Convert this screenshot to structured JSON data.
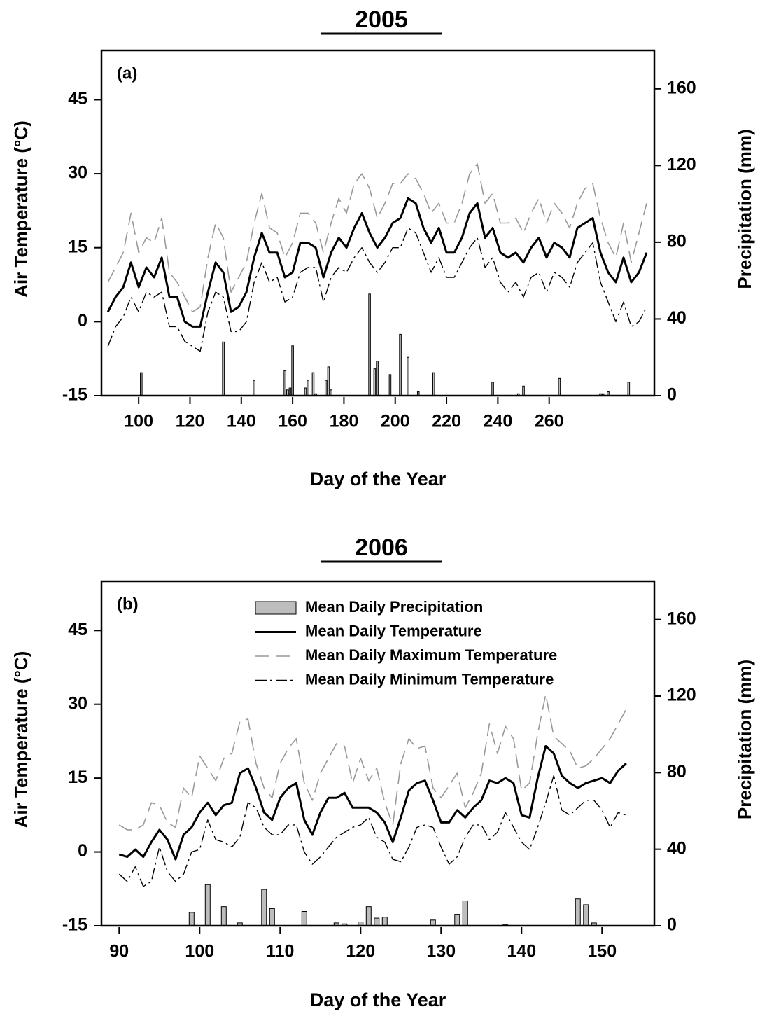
{
  "chart_data": [
    {
      "type": "line",
      "title": "2005",
      "panel_label": "(a)",
      "xlabel": "Day of the Year",
      "ylabel": "Air Temperature (°C)",
      "y2label": "Precipitation (mm)",
      "xlim": [
        85.5,
        301
      ],
      "xticks": [
        100,
        120,
        140,
        160,
        180,
        200,
        220,
        240,
        260
      ],
      "ylim": [
        -15,
        55
      ],
      "yticks": [
        -15,
        0,
        15,
        30,
        45
      ],
      "y2lim": [
        0,
        180
      ],
      "y2ticks": [
        0,
        40,
        80,
        120,
        160
      ],
      "legend": false,
      "series": [
        {
          "type": "bar",
          "axis": "y2",
          "color": "#bdbdbd",
          "x": [
            101,
            133,
            145,
            157,
            158,
            159,
            160,
            165,
            166,
            168,
            169,
            173,
            174,
            175,
            190,
            192,
            193,
            198,
            202,
            205,
            209,
            215,
            238,
            248,
            250,
            264,
            280,
            281,
            283,
            291
          ],
          "values": [
            12,
            28,
            8,
            13,
            3,
            4,
            26,
            4,
            8,
            12,
            1,
            8,
            15,
            3,
            53,
            14,
            18,
            11,
            32,
            20,
            2,
            12,
            7,
            1,
            5,
            9,
            1,
            1,
            2,
            7
          ]
        },
        {
          "style": "dashed",
          "color": "#999999",
          "x": [
            88,
            91,
            94,
            97,
            100,
            103,
            106,
            109,
            112,
            115,
            118,
            121,
            124,
            127,
            130,
            133,
            136,
            139,
            142,
            145,
            148,
            151,
            154,
            157,
            160,
            163,
            166,
            169,
            172,
            175,
            178,
            181,
            184,
            187,
            190,
            193,
            196,
            199,
            202,
            205,
            208,
            211,
            214,
            217,
            220,
            223,
            226,
            229,
            232,
            235,
            238,
            241,
            244,
            247,
            250,
            253,
            256,
            259,
            262,
            265,
            268,
            271,
            274,
            277,
            280,
            283,
            286,
            289,
            292,
            295,
            298
          ],
          "values": [
            8,
            11,
            14,
            22,
            14,
            17,
            16,
            21,
            10,
            8,
            5,
            2,
            3,
            13,
            20,
            17,
            6,
            9,
            12,
            20,
            26,
            19,
            18,
            13,
            16,
            22,
            22,
            20,
            14,
            20,
            25,
            22,
            28,
            30,
            27,
            21,
            24,
            28,
            28,
            30,
            29,
            26,
            22,
            24,
            20,
            20,
            24,
            30,
            32,
            24,
            26,
            20,
            20,
            21,
            18,
            22,
            25,
            20,
            24,
            22,
            19,
            24,
            27,
            28,
            21,
            16,
            13,
            20,
            12,
            18,
            24
          ]
        },
        {
          "style": "solid",
          "color": "#000000",
          "x": [
            88,
            91,
            94,
            97,
            100,
            103,
            106,
            109,
            112,
            115,
            118,
            121,
            124,
            127,
            130,
            133,
            136,
            139,
            142,
            145,
            148,
            151,
            154,
            157,
            160,
            163,
            166,
            169,
            172,
            175,
            178,
            181,
            184,
            187,
            190,
            193,
            196,
            199,
            202,
            205,
            208,
            211,
            214,
            217,
            220,
            223,
            226,
            229,
            232,
            235,
            238,
            241,
            244,
            247,
            250,
            253,
            256,
            259,
            262,
            265,
            268,
            271,
            274,
            277,
            280,
            283,
            286,
            289,
            292,
            295,
            298
          ],
          "values": [
            2,
            5,
            7,
            12,
            7,
            11,
            9,
            13,
            5,
            5,
            0,
            -1,
            -1,
            6,
            12,
            10,
            2,
            3,
            6,
            13,
            18,
            14,
            14,
            9,
            10,
            16,
            16,
            15,
            9,
            14,
            17,
            15,
            19,
            22,
            18,
            15,
            17,
            20,
            21,
            25,
            24,
            19,
            16,
            19,
            14,
            14,
            17,
            22,
            24,
            17,
            19,
            14,
            13,
            14,
            12,
            15,
            17,
            13,
            16,
            15,
            13,
            19,
            20,
            21,
            14,
            10,
            8,
            13,
            8,
            10,
            14
          ]
        },
        {
          "style": "dash-dot",
          "color": "#000000",
          "x": [
            88,
            91,
            94,
            97,
            100,
            103,
            106,
            109,
            112,
            115,
            118,
            121,
            124,
            127,
            130,
            133,
            136,
            139,
            142,
            145,
            148,
            151,
            154,
            157,
            160,
            163,
            166,
            169,
            172,
            175,
            178,
            181,
            184,
            187,
            190,
            193,
            196,
            199,
            202,
            205,
            208,
            211,
            214,
            217,
            220,
            223,
            226,
            229,
            232,
            235,
            238,
            241,
            244,
            247,
            250,
            253,
            256,
            259,
            262,
            265,
            268,
            271,
            274,
            277,
            280,
            283,
            286,
            289,
            292,
            295,
            298
          ],
          "values": [
            -5,
            -1,
            1,
            5,
            2,
            6,
            5,
            6,
            -1,
            -1,
            -4,
            -5,
            -6,
            2,
            6,
            5,
            -2,
            -2,
            0,
            8,
            12,
            8,
            9,
            4,
            5,
            10,
            11,
            11,
            4,
            9,
            11,
            10,
            13,
            15,
            12,
            10,
            12,
            15,
            15,
            19,
            18,
            14,
            10,
            13,
            9,
            9,
            12,
            15,
            17,
            11,
            13,
            8,
            6,
            8,
            5,
            9,
            10,
            6,
            10,
            9,
            7,
            12,
            14,
            16,
            8,
            4,
            0,
            4,
            -1,
            0,
            3
          ]
        }
      ]
    },
    {
      "type": "line",
      "title": "2006",
      "panel_label": "(b)",
      "xlabel": "Day of the Year",
      "ylabel": "Air Temperature (°C)",
      "y2label": "Precipitation (mm)",
      "xlim": [
        87.8,
        156.5
      ],
      "xticks": [
        90,
        100,
        110,
        120,
        130,
        140,
        150
      ],
      "ylim": [
        -15,
        55
      ],
      "yticks": [
        -15,
        0,
        15,
        30,
        45
      ],
      "y2lim": [
        0,
        180
      ],
      "y2ticks": [
        0,
        40,
        80,
        120,
        160
      ],
      "legend": true,
      "series": [
        {
          "name": "Mean Daily Precipitation",
          "type": "bar",
          "axis": "y2",
          "color": "#bdbdbd",
          "x": [
            99,
            101,
            103,
            105,
            108,
            109,
            113,
            117,
            118,
            120,
            121,
            122,
            123,
            129,
            132,
            133,
            138,
            147,
            148,
            149
          ],
          "values": [
            7,
            21.5,
            10,
            1.5,
            19,
            9,
            7.5,
            1.5,
            1,
            2,
            10,
            4,
            4.5,
            3,
            6,
            13,
            0.5,
            14,
            11,
            1.5
          ]
        },
        {
          "name": "Mean Daily Temperature",
          "style": "solid",
          "color": "#000000",
          "x": [
            90,
            91,
            92,
            93,
            94,
            95,
            96,
            97,
            98,
            99,
            100,
            101,
            102,
            103,
            104,
            105,
            106,
            107,
            108,
            109,
            110,
            111,
            112,
            113,
            114,
            115,
            116,
            117,
            118,
            119,
            120,
            121,
            122,
            123,
            124,
            125,
            126,
            127,
            128,
            129,
            130,
            131,
            132,
            133,
            134,
            135,
            136,
            137,
            138,
            139,
            140,
            141,
            142,
            143,
            144,
            145,
            146,
            147,
            148,
            149,
            150,
            151,
            152,
            153
          ],
          "values": [
            -0.5,
            -1,
            0.5,
            -1,
            2,
            4.5,
            2.5,
            -1.5,
            3.5,
            5,
            8,
            10,
            7.5,
            9.5,
            10,
            16,
            17,
            13,
            8,
            6.5,
            11,
            13,
            14,
            6.5,
            3.5,
            8,
            11,
            11,
            12,
            9,
            9,
            9,
            8,
            6,
            2,
            7,
            12.5,
            14,
            14.5,
            10.5,
            6,
            6,
            8.5,
            7,
            9,
            10.5,
            14.5,
            14,
            15,
            14,
            7.5,
            7,
            15,
            21.5,
            20,
            15.5,
            14,
            13,
            14,
            14.5,
            15,
            14,
            16.5,
            18
          ]
        },
        {
          "name": "Mean Daily Maximum Temperature",
          "style": "dashed",
          "color": "#999999",
          "x": [
            90,
            91,
            92,
            93,
            94,
            95,
            96,
            97,
            98,
            99,
            100,
            101,
            102,
            103,
            104,
            105,
            106,
            107,
            108,
            109,
            110,
            111,
            112,
            113,
            114,
            115,
            116,
            117,
            118,
            119,
            120,
            121,
            122,
            123,
            124,
            125,
            126,
            127,
            128,
            129,
            130,
            131,
            132,
            133,
            134,
            135,
            136,
            137,
            138,
            139,
            140,
            141,
            142,
            143,
            144,
            145,
            146,
            147,
            148,
            149,
            150,
            151,
            152,
            153
          ],
          "values": [
            5.5,
            4.5,
            4.5,
            5.5,
            10,
            9.5,
            6,
            5,
            13,
            11,
            19.5,
            17,
            14.5,
            19,
            20,
            26.5,
            27,
            18,
            13,
            11,
            18,
            21,
            23,
            14,
            10.5,
            16,
            19,
            22,
            21.5,
            14,
            19,
            14.5,
            17,
            10,
            5.5,
            18,
            23,
            21,
            21.5,
            13,
            11,
            13.5,
            16,
            9,
            12,
            16,
            26,
            20,
            25.5,
            23,
            12.5,
            14,
            24,
            32,
            23.5,
            22,
            20.5,
            17,
            17.5,
            19,
            21,
            23,
            26,
            29
          ]
        },
        {
          "name": "Mean Daily Minimum Temperature",
          "style": "dash-dot",
          "color": "#000000",
          "x": [
            90,
            91,
            92,
            93,
            94,
            95,
            96,
            97,
            98,
            99,
            100,
            101,
            102,
            103,
            104,
            105,
            106,
            107,
            108,
            109,
            110,
            111,
            112,
            113,
            114,
            115,
            116,
            117,
            118,
            119,
            120,
            121,
            122,
            123,
            124,
            125,
            126,
            127,
            128,
            129,
            130,
            131,
            132,
            133,
            134,
            135,
            136,
            137,
            138,
            139,
            140,
            141,
            142,
            143,
            144,
            145,
            146,
            147,
            148,
            149,
            150,
            151,
            152,
            153
          ],
          "values": [
            -4.5,
            -6,
            -3,
            -7,
            -6,
            1,
            -4,
            -6,
            -4.5,
            0,
            0.5,
            6.5,
            2.5,
            2,
            1,
            3,
            10,
            9,
            5,
            3.5,
            3.5,
            5.5,
            5.5,
            0,
            -2.5,
            -1,
            1,
            3,
            4,
            5,
            5.5,
            7,
            3,
            2,
            -1.5,
            -2,
            1,
            5,
            5.5,
            5,
            1,
            -2.5,
            -1,
            3,
            5.5,
            5.5,
            2.5,
            4,
            8,
            5,
            2,
            0.5,
            5,
            10,
            15.5,
            8.5,
            7.5,
            9,
            10.5,
            10.5,
            8.5,
            5,
            8,
            7.5
          ]
        }
      ]
    }
  ]
}
